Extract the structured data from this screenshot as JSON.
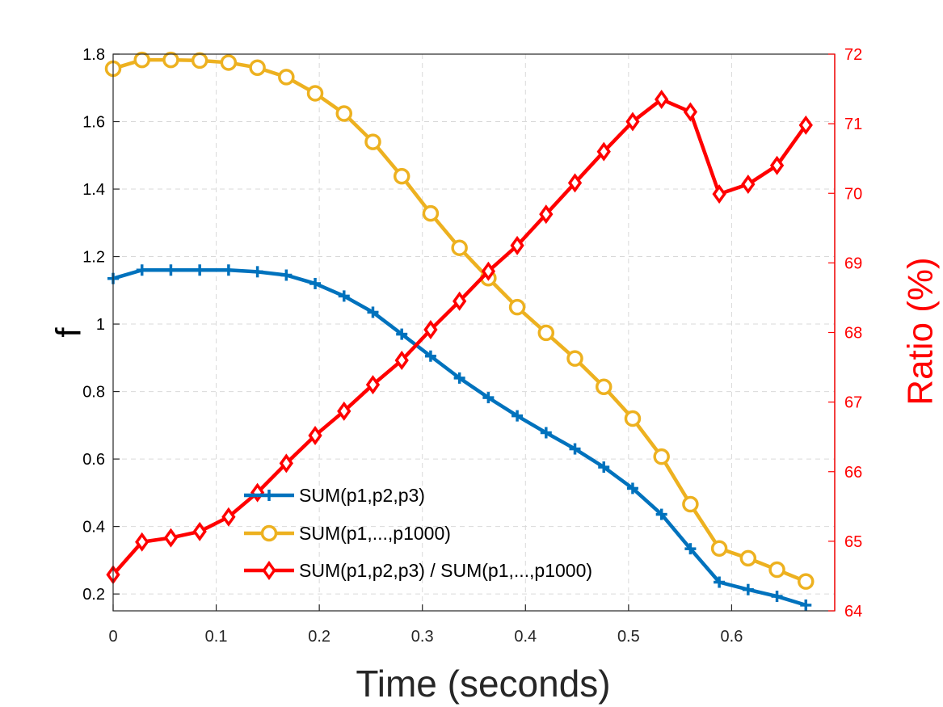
{
  "chart_data": {
    "type": "line",
    "xlabel": "Time (seconds)",
    "ylabel_left": "f",
    "ylabel_right": "Ratio (%)",
    "xlim": [
      0,
      0.7
    ],
    "ylim_left": [
      0.15,
      1.8
    ],
    "ylim_right": [
      64,
      72
    ],
    "xticks": [
      "0",
      "0.1",
      "0.2",
      "0.3",
      "0.4",
      "0.5",
      "0.6"
    ],
    "yticks_left": [
      "0.2",
      "0.4",
      "0.6",
      "0.8",
      "1",
      "1.2",
      "1.4",
      "1.6",
      "1.8"
    ],
    "yticks_right": [
      "64",
      "65",
      "66",
      "67",
      "68",
      "69",
      "70",
      "71",
      "72"
    ],
    "grid": true,
    "legend_position": "bottom-center",
    "x": [
      0,
      0.028,
      0.056,
      0.084,
      0.112,
      0.14,
      0.168,
      0.196,
      0.224,
      0.252,
      0.28,
      0.308,
      0.336,
      0.364,
      0.392,
      0.42,
      0.448,
      0.476,
      0.504,
      0.532,
      0.56,
      0.588,
      0.616,
      0.644,
      0.672
    ],
    "series": [
      {
        "name": "SUM(p1,p2,p3)",
        "axis": "left",
        "color": "#0072BD",
        "marker": "plus",
        "values": [
          1.135,
          1.16,
          1.16,
          1.16,
          1.16,
          1.155,
          1.145,
          1.12,
          1.083,
          1.035,
          0.97,
          0.905,
          0.84,
          0.782,
          0.728,
          0.678,
          0.63,
          0.576,
          0.513,
          0.436,
          0.334,
          0.235,
          0.213,
          0.193,
          0.167
        ]
      },
      {
        "name": "SUM(p1,...,p1000)",
        "axis": "left",
        "color": "#EDB120",
        "marker": "circle",
        "values": [
          1.757,
          1.783,
          1.783,
          1.781,
          1.775,
          1.76,
          1.732,
          1.684,
          1.624,
          1.54,
          1.438,
          1.328,
          1.226,
          1.136,
          1.05,
          0.974,
          0.898,
          0.814,
          0.72,
          0.607,
          0.466,
          0.335,
          0.306,
          0.272,
          0.237
        ]
      },
      {
        "name": "SUM(p1,p2,p3) / SUM(p1,...,p1000)",
        "axis": "right",
        "color": "#FF0000",
        "marker": "diamond",
        "values": [
          64.52,
          64.99,
          65.05,
          65.14,
          65.35,
          65.7,
          66.12,
          66.52,
          66.87,
          67.25,
          67.6,
          68.04,
          68.45,
          68.88,
          69.25,
          69.7,
          70.15,
          70.6,
          71.03,
          71.35,
          71.17,
          69.99,
          70.13,
          70.4,
          70.98
        ]
      }
    ]
  }
}
